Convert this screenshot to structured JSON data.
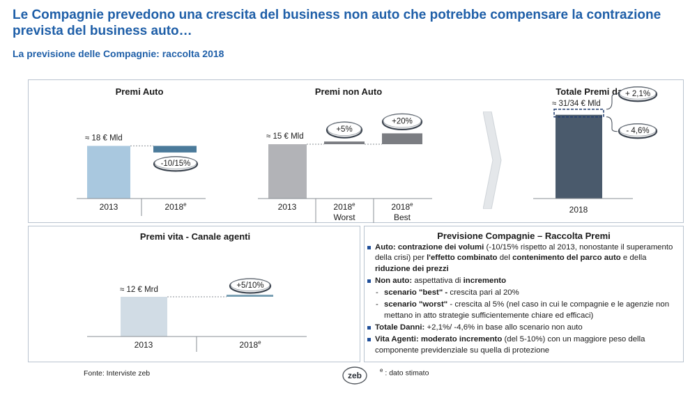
{
  "header": {
    "title": "Le Compagnie prevedono una crescita del business non auto che potrebbe compensare la contrazione prevista del business auto…",
    "subtitle": "La previsione delle Compagnie: raccolta 2018"
  },
  "colors": {
    "title_blue": "#1f5fa8",
    "auto_bar": "#a9c8df",
    "auto_delta": "#4a7a9a",
    "nonauto_bar": "#b2b3b7",
    "nonauto_delta": "#7b7d82",
    "totale_bar": "#4a5a6c",
    "vita_bar": "#d1dce5",
    "vita_delta": "#7aa0b4"
  },
  "chart_data": [
    {
      "type": "bar",
      "title": "Premi Auto",
      "categories": [
        "2013",
        "2018e"
      ],
      "series": [
        {
          "values": [
            18,
            -2.25
          ]
        }
      ],
      "data_labels": [
        "≈ 18 € Mld",
        "-10/15%"
      ],
      "unit": "€ Mld",
      "waterfall": true
    },
    {
      "type": "bar",
      "title": "Premi non Auto",
      "categories": [
        "2013",
        "2018e Worst",
        "2018e Best"
      ],
      "series": [
        {
          "values": [
            15,
            0.75,
            3
          ]
        }
      ],
      "data_labels": [
        "≈ 15 € Mld",
        "+5%",
        "+20%"
      ],
      "unit": "€ Mld",
      "waterfall": true
    },
    {
      "type": "bar",
      "title": "Totale Premi danni",
      "categories": [
        "2018"
      ],
      "series": [
        {
          "values": [
            32.5
          ]
        }
      ],
      "data_labels": [
        "≈ 31/34 € Mld",
        "+ 2,1%",
        "- 4,6%"
      ],
      "unit": "€ Mld"
    },
    {
      "type": "bar",
      "title": "Premi vita - Canale agenti",
      "categories": [
        "2013",
        "2018e"
      ],
      "series": [
        {
          "values": [
            12,
            0.6
          ]
        }
      ],
      "data_labels": [
        "≈ 12 € Mrd",
        "+5/10%"
      ],
      "unit": "€ Mrd",
      "waterfall": true
    }
  ],
  "forecast": {
    "title": "Previsione Compagnie – Raccolta Premi",
    "auto": {
      "b1": "Auto:",
      "b2": "contrazione dei volumi",
      "t1": "(-10/15% rispetto al 2013, nonostante il superamento della crisi) per",
      "b3": "l'effetto combinato",
      "t2": "del",
      "b4": "contenimento del parco auto",
      "t3": "e della",
      "b5": "riduzione dei prezzi"
    },
    "nonauto": {
      "b1": "Non auto:",
      "t1": "aspettativa di",
      "b2": "incremento"
    },
    "best": {
      "b1": "scenario \"best\" -",
      "t1": "crescita pari al 20%"
    },
    "worst": {
      "b1": "scenario \"worst\"",
      "t1": "- crescita al 5% (nel caso in cui le compagnie e le agenzie non mettano in atto strategie sufficientemente chiare ed efficaci)"
    },
    "totale": {
      "b1": "Totale Danni:",
      "t1": "+2,1%/ -4,6% in base allo scenario non auto"
    },
    "vita": {
      "b1": "Vita Agenti:",
      "b2": "moderato incremento",
      "t1": "(del 5-10%) con un maggiore peso della componente previdenziale su quella di protezione"
    }
  },
  "footer": {
    "source": "Fonte: Interviste zeb",
    "logo": "zeb",
    "note_sup": "e",
    "note": ": dato stimato"
  }
}
